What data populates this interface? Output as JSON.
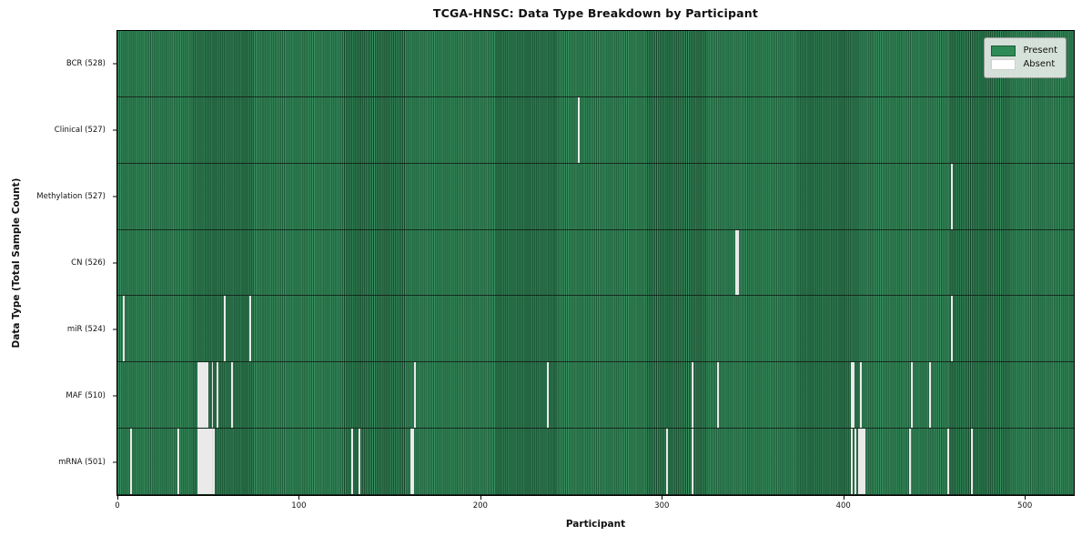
{
  "title": "TCGA-HNSC: Data Type Breakdown by Participant",
  "xlabel": "Participant",
  "ylabel": "Data Type (Total Sample Count)",
  "legend": [
    {
      "label": "Present",
      "color": "#2e8b57"
    },
    {
      "label": "Absent",
      "color": "#ffffff"
    }
  ],
  "chart_data": {
    "type": "heatmap",
    "title": "TCGA-HNSC: Data Type Breakdown by Participant",
    "xlabel": "Participant",
    "ylabel": "Data Type (Total Sample Count)",
    "total_participants": 528,
    "x_range": [
      0,
      528
    ],
    "xticks": [
      0,
      100,
      200,
      300,
      400,
      500
    ],
    "grid": false,
    "legend_position": "upper right",
    "colors": {
      "present": "#2e8b57",
      "absent": "#f6f6f6",
      "cell_edge": "#14341f"
    },
    "rows": [
      {
        "label": "BCR (528)",
        "data_type": "BCR",
        "present_count": 528,
        "absent_count": 0,
        "absent_participants": []
      },
      {
        "label": "Clinical (527)",
        "data_type": "Clinical",
        "present_count": 527,
        "absent_count": 1,
        "absent_participants": [
          254
        ]
      },
      {
        "label": "Methylation (527)",
        "data_type": "Methylation",
        "present_count": 527,
        "absent_count": 1,
        "absent_participants": [
          460
        ]
      },
      {
        "label": "CN (526)",
        "data_type": "CN",
        "present_count": 526,
        "absent_count": 2,
        "absent_participants": [
          341,
          342
        ]
      },
      {
        "label": "miR (524)",
        "data_type": "miR",
        "present_count": 524,
        "absent_count": 4,
        "absent_participants": [
          3,
          59,
          73,
          460
        ]
      },
      {
        "label": "MAF (510)",
        "data_type": "MAF",
        "present_count": 510,
        "absent_count": 18,
        "absent_participants": [
          44,
          45,
          46,
          47,
          48,
          49,
          52,
          55,
          63,
          164,
          237,
          317,
          331,
          405,
          406,
          410,
          438,
          448
        ]
      },
      {
        "label": "mRNA (501)",
        "data_type": "mRNA",
        "present_count": 501,
        "absent_count": 27,
        "absent_participants": [
          7,
          33,
          44,
          45,
          46,
          47,
          48,
          49,
          50,
          51,
          52,
          53,
          129,
          133,
          162,
          163,
          303,
          317,
          405,
          407,
          409,
          410,
          411,
          412,
          437,
          458,
          471
        ]
      }
    ]
  }
}
